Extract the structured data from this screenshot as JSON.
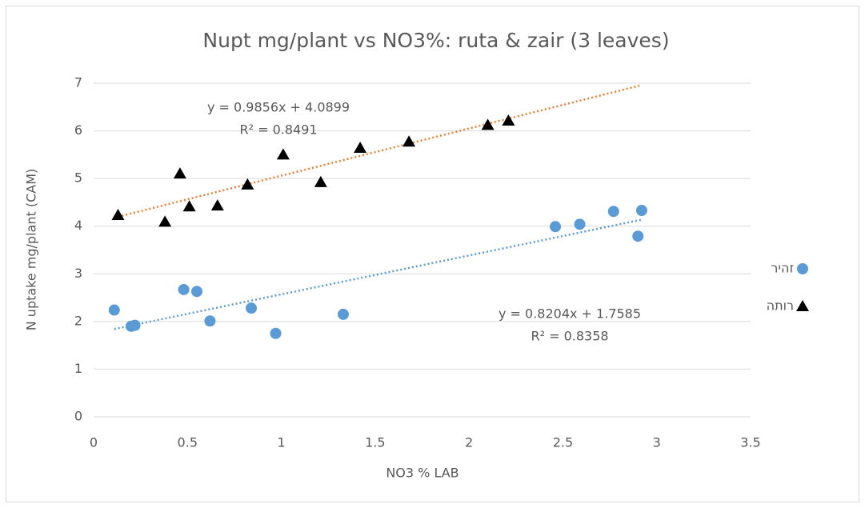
{
  "chart_data": {
    "type": "scatter",
    "title": "Nupt mg/plant vs NO3%: ruta & zair (3 leaves)",
    "x_label": "NO3 % LAB",
    "y_label": "N uptake  mg/plant (CAM)",
    "xlim": [
      0,
      3.5
    ],
    "xticks": [
      0,
      0.5,
      1,
      1.5,
      2,
      2.5,
      3,
      3.5
    ],
    "ylim": [
      0,
      7
    ],
    "yticks": [
      0,
      1,
      2,
      3,
      4,
      5,
      6,
      7
    ],
    "grid": true,
    "legend": "right",
    "series": [
      {
        "name": "זהיר",
        "color": "#5b9bd5",
        "marker": "circle",
        "trendline_color": "#5b9bd5",
        "x": [
          0.11,
          0.2,
          0.22,
          0.48,
          0.55,
          0.62,
          0.84,
          0.97,
          1.33,
          2.46,
          2.59,
          2.77,
          2.9,
          2.92
        ],
        "values": [
          2.24,
          1.9,
          1.92,
          2.67,
          2.63,
          2.01,
          2.28,
          1.75,
          2.15,
          3.99,
          4.04,
          4.31,
          3.79,
          4.33
        ]
      },
      {
        "name": "רותה",
        "color": "#000000",
        "marker": "triangle",
        "trendline_color": "#ed7d31",
        "x": [
          0.13,
          0.38,
          0.46,
          0.51,
          0.66,
          0.82,
          1.01,
          1.21,
          1.42,
          1.68,
          2.1,
          2.21
        ],
        "values": [
          4.23,
          4.09,
          5.1,
          4.41,
          4.43,
          4.87,
          5.5,
          4.92,
          5.64,
          5.77,
          6.12,
          6.21
        ]
      }
    ],
    "annotations": [
      [
        "y = 0.8204x + 1.7585",
        "R² = 0.8358"
      ],
      [
        "y = 0.9856x + 4.0899",
        "R² = 0.8491"
      ]
    ]
  }
}
